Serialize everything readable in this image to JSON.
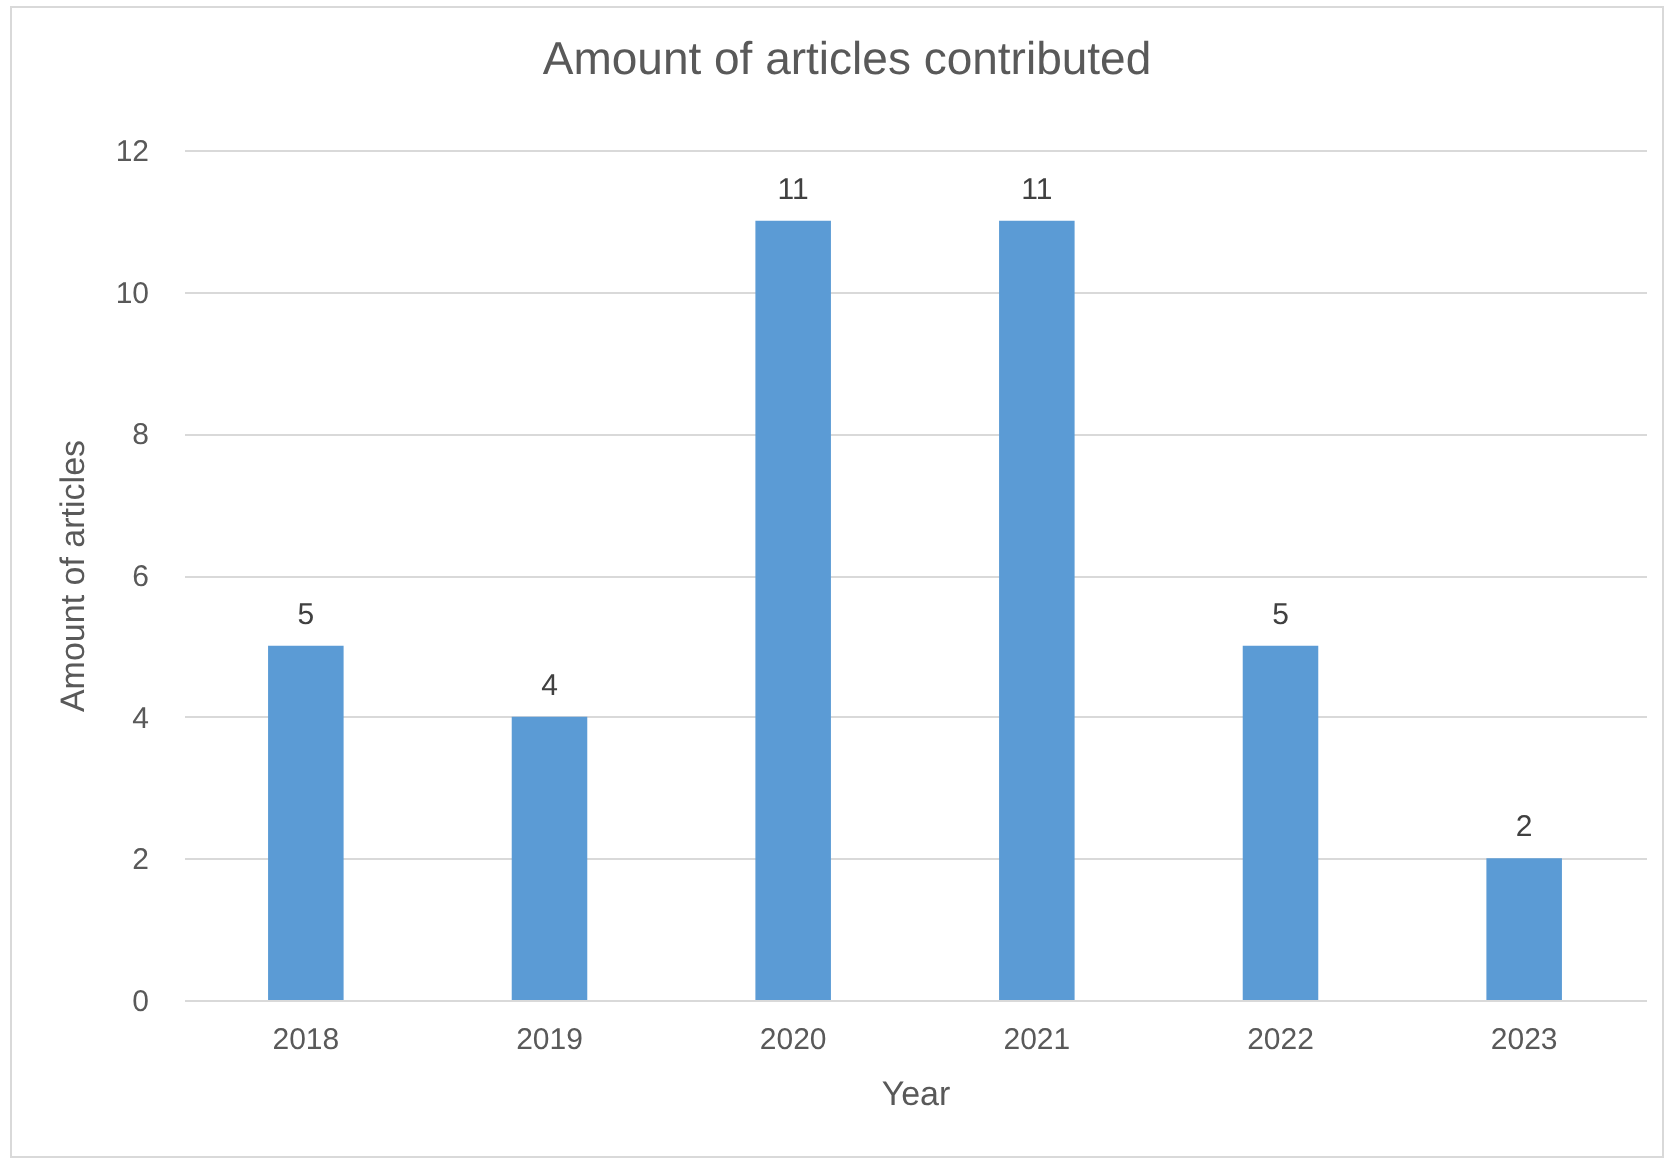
{
  "chart_data": {
    "type": "bar",
    "title": "Amount of articles contributed",
    "xlabel": "Year",
    "ylabel": "Amount of articles",
    "categories": [
      "2018",
      "2019",
      "2020",
      "2021",
      "2022",
      "2023"
    ],
    "values": [
      5,
      4,
      11,
      11,
      5,
      2
    ],
    "color": "#5b9bd5",
    "ylim": [
      0,
      12
    ],
    "yticks": [
      0,
      2,
      4,
      6,
      8,
      10,
      12
    ],
    "grid": "y",
    "data_labels": true
  }
}
